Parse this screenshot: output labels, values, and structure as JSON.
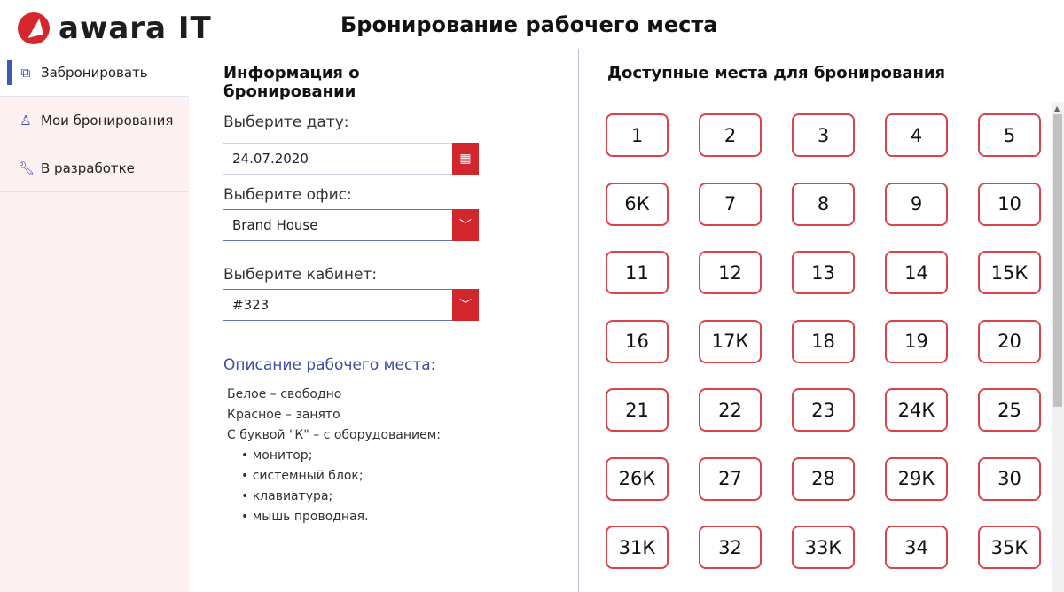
{
  "logo": {
    "text": "awara IT"
  },
  "header": {
    "title": "Бронирование рабочего места"
  },
  "sidebar": {
    "items": [
      {
        "label": "Забронировать",
        "icon": "desk-icon",
        "active": true
      },
      {
        "label": "Мои бронирования",
        "icon": "user-icon"
      },
      {
        "label": "В разработке",
        "icon": "wrench-icon"
      }
    ]
  },
  "form": {
    "heading": "Информация о бронировании",
    "date_label": "Выберите дату:",
    "date_value": "24.07.2020",
    "office_label": "Выберите офис:",
    "office_value": "Brand House",
    "room_label": "Выберите кабинет:",
    "room_value": "#323"
  },
  "description": {
    "title": "Описание рабочего места:",
    "lines": [
      "Белое – свободно",
      "Красное – занято",
      "С буквой \"К\" – с оборудованием:"
    ],
    "bullets": [
      "• монитор;",
      "• системный блок;",
      "• клавиатура;",
      "• мышь проводная."
    ]
  },
  "seats": {
    "heading": "Доступные места для бронирования",
    "items": [
      "1",
      "2",
      "3",
      "4",
      "5",
      "6К",
      "7",
      "8",
      "9",
      "10",
      "11",
      "12",
      "13",
      "14",
      "15К",
      "16",
      "17К",
      "18",
      "19",
      "20",
      "21",
      "22",
      "23",
      "24К",
      "25",
      "26К",
      "27",
      "28",
      "29К",
      "30",
      "31К",
      "32",
      "33К",
      "34",
      "35К"
    ]
  },
  "colors": {
    "accent": "#d1262c",
    "nav_accent": "#3b5bb5",
    "sidebar_bg": "#fdf1f1"
  }
}
